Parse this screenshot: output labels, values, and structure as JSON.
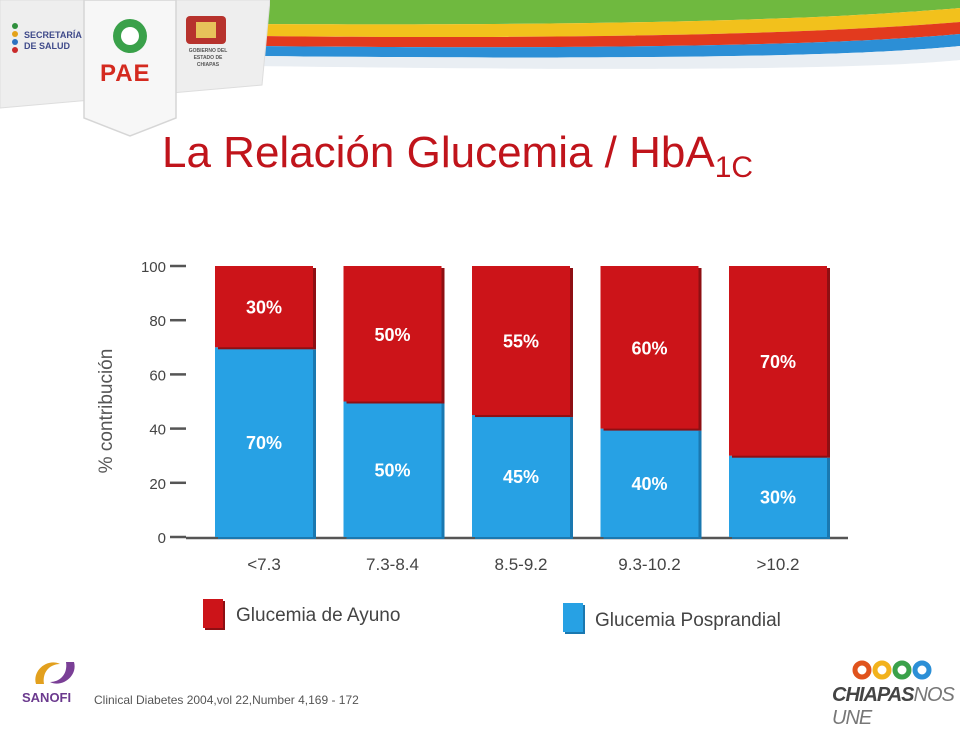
{
  "title": {
    "main": "La Relación Glucemia / HbA",
    "subscript": "1C"
  },
  "logos": {
    "secretaria_line1": "SECRETARÍA",
    "secretaria_line2": "DE SALUD",
    "pae": "PAE",
    "gobierno_line1": "GOBIERNO DEL",
    "gobierno_line2": "ESTADO DE CHIAPAS",
    "sanofi": "SANOFI",
    "chiapas_bold": "CHIAPAS",
    "chiapas_rest": "NOS UNE"
  },
  "citation": "Clinical  Diabetes 2004,vol 22,Number 4,169 - 172",
  "legend": {
    "fasting_label": "Glucemia de Ayuno",
    "postprandial_label": "Glucemia Posprandial"
  },
  "colors": {
    "fasting": "#cc1419",
    "postprandial": "#27a1e4",
    "title": "#c0141b",
    "axis": "#555555"
  },
  "chart_data": {
    "type": "bar",
    "stacked": true,
    "ylabel": "% contribución",
    "xlabel": "",
    "ylim": [
      0,
      100
    ],
    "yticks": [
      "0",
      "20",
      "40",
      "60",
      "80",
      "100"
    ],
    "categories": [
      "<7.3",
      "7.3-8.4",
      "8.5-9.2",
      "9.3-10.2",
      ">10.2"
    ],
    "series": [
      {
        "name": "Glucemia Posprandial",
        "values": [
          70,
          50,
          45,
          40,
          30
        ],
        "labels": [
          "70%",
          "50%",
          "45%",
          "40%",
          "30%"
        ]
      },
      {
        "name": "Glucemia de Ayuno",
        "values": [
          30,
          50,
          55,
          60,
          70
        ],
        "labels": [
          "30%",
          "50%",
          "55%",
          "60%",
          "70%"
        ]
      }
    ],
    "grid": false,
    "legend_position": "bottom"
  }
}
